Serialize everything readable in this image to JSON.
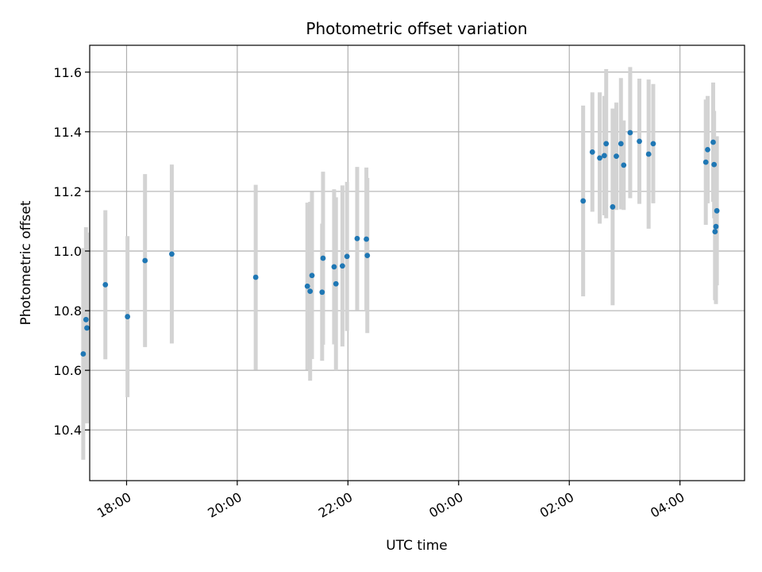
{
  "chart_data": {
    "type": "scatter",
    "title": "Photometric offset variation",
    "xlabel": "UTC time",
    "ylabel": "Photometric offset",
    "x_unit": "hours (UTC clock time, continuing past midnight)",
    "xlim": [
      "17:20",
      "05:10"
    ],
    "ylim": [
      10.23,
      11.69
    ],
    "x_ticks": [
      "18:00",
      "20:00",
      "22:00",
      "00:00",
      "02:00",
      "04:00"
    ],
    "y_ticks": [
      "10.4",
      "10.6",
      "10.8",
      "11.0",
      "11.2",
      "11.4",
      "11.6"
    ],
    "grid": true,
    "marker_color": "#1f77b4",
    "errorbar_color": "#d3d3d3",
    "series": [
      {
        "points": [
          {
            "x": "17:13",
            "y": 10.655,
            "yerr": 0.355
          },
          {
            "x": "17:16",
            "y": 10.77,
            "yerr": 0.31
          },
          {
            "x": "17:17",
            "y": 10.742,
            "yerr": 0.32
          },
          {
            "x": "17:37",
            "y": 10.887,
            "yerr": 0.25
          },
          {
            "x": "18:01",
            "y": 10.78,
            "yerr": 0.27
          },
          {
            "x": "18:20",
            "y": 10.968,
            "yerr": 0.29
          },
          {
            "x": "18:49",
            "y": 10.99,
            "yerr": 0.3
          },
          {
            "x": "20:20",
            "y": 10.912,
            "yerr": 0.31
          },
          {
            "x": "21:16",
            "y": 10.882,
            "yerr": 0.28
          },
          {
            "x": "21:19",
            "y": 10.865,
            "yerr": 0.3
          },
          {
            "x": "21:21",
            "y": 10.918,
            "yerr": 0.28
          },
          {
            "x": "21:32",
            "y": 10.862,
            "yerr": 0.23
          },
          {
            "x": "21:33",
            "y": 10.976,
            "yerr": 0.29
          },
          {
            "x": "21:45",
            "y": 10.947,
            "yerr": 0.26
          },
          {
            "x": "21:47",
            "y": 10.89,
            "yerr": 0.29
          },
          {
            "x": "21:54",
            "y": 10.95,
            "yerr": 0.27
          },
          {
            "x": "21:59",
            "y": 10.982,
            "yerr": 0.25
          },
          {
            "x": "22:10",
            "y": 11.042,
            "yerr": 0.24
          },
          {
            "x": "22:20",
            "y": 11.04,
            "yerr": 0.24
          },
          {
            "x": "22:21",
            "y": 10.985,
            "yerr": 0.26
          },
          {
            "x": "02:15",
            "y": 11.168,
            "yerr": 0.32
          },
          {
            "x": "02:25",
            "y": 11.332,
            "yerr": 0.2
          },
          {
            "x": "02:33",
            "y": 11.312,
            "yerr": 0.22
          },
          {
            "x": "02:38",
            "y": 11.32,
            "yerr": 0.2
          },
          {
            "x": "02:40",
            "y": 11.36,
            "yerr": 0.25
          },
          {
            "x": "02:47",
            "y": 11.148,
            "yerr": 0.33
          },
          {
            "x": "02:51",
            "y": 11.318,
            "yerr": 0.18
          },
          {
            "x": "02:56",
            "y": 11.36,
            "yerr": 0.22
          },
          {
            "x": "02:59",
            "y": 11.288,
            "yerr": 0.15
          },
          {
            "x": "03:06",
            "y": 11.397,
            "yerr": 0.22
          },
          {
            "x": "03:16",
            "y": 11.368,
            "yerr": 0.21
          },
          {
            "x": "03:26",
            "y": 11.325,
            "yerr": 0.25
          },
          {
            "x": "03:31",
            "y": 11.36,
            "yerr": 0.2
          },
          {
            "x": "04:28",
            "y": 11.298,
            "yerr": 0.21
          },
          {
            "x": "04:30",
            "y": 11.34,
            "yerr": 0.18
          },
          {
            "x": "04:36",
            "y": 11.365,
            "yerr": 0.2
          },
          {
            "x": "04:37",
            "y": 11.29,
            "yerr": 0.18
          },
          {
            "x": "04:38",
            "y": 11.065,
            "yerr": 0.23
          },
          {
            "x": "04:39",
            "y": 11.082,
            "yerr": 0.26
          },
          {
            "x": "04:40",
            "y": 11.135,
            "yerr": 0.25
          }
        ]
      }
    ]
  }
}
